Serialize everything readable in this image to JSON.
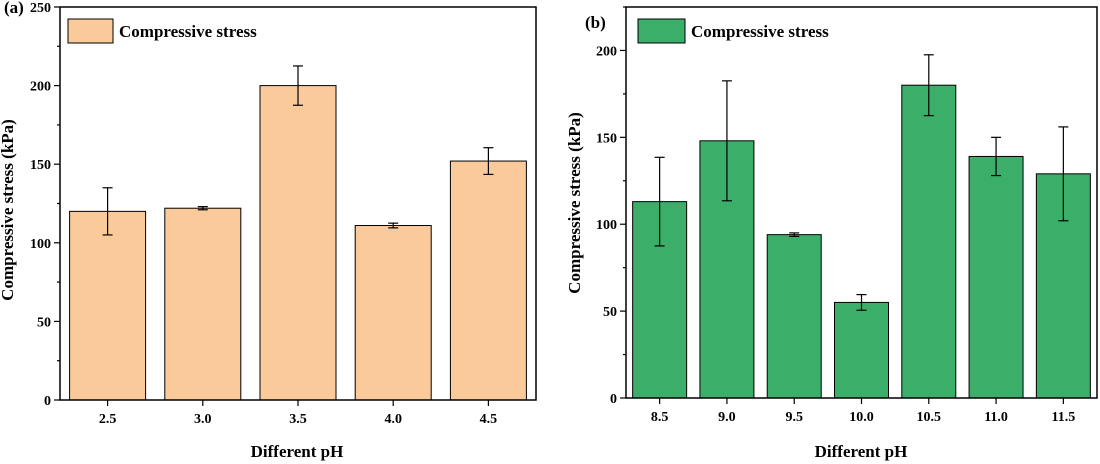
{
  "chart_data": [
    {
      "type": "bar",
      "panel_label": "(a)",
      "categories": [
        "2.5",
        "3.0",
        "3.5",
        "4.0",
        "4.5"
      ],
      "series": [
        {
          "name": "Compressive stress",
          "values": [
            120,
            122,
            200,
            111,
            152
          ],
          "errors": [
            15,
            1,
            12.5,
            1.5,
            8.5
          ]
        }
      ],
      "xlabel": "Different pH",
      "ylabel": "Compressive stress (kPa)",
      "ylim": [
        0,
        250
      ],
      "yticks": [
        "0",
        "50",
        "100",
        "150",
        "200",
        "250"
      ],
      "bar_color": "#FACA9B",
      "grid": false,
      "legend_position": "top-left"
    },
    {
      "type": "bar",
      "panel_label": "(b)",
      "categories": [
        "8.5",
        "9.0",
        "9.5",
        "10.0",
        "10.5",
        "11.0",
        "11.5"
      ],
      "series": [
        {
          "name": "Compressive stress",
          "values": [
            113,
            148,
            94,
            55,
            180,
            139,
            129
          ],
          "errors": [
            25.5,
            34.5,
            1,
            4.5,
            17.5,
            11,
            27
          ]
        }
      ],
      "xlabel": "Different pH",
      "ylabel": "Compressive stress (kPa)",
      "ylim": [
        0,
        225
      ],
      "yticks": [
        "0",
        "50",
        "100",
        "150",
        "200"
      ],
      "bar_color": "#3BAE6A",
      "grid": false,
      "legend_position": "top-left"
    }
  ]
}
